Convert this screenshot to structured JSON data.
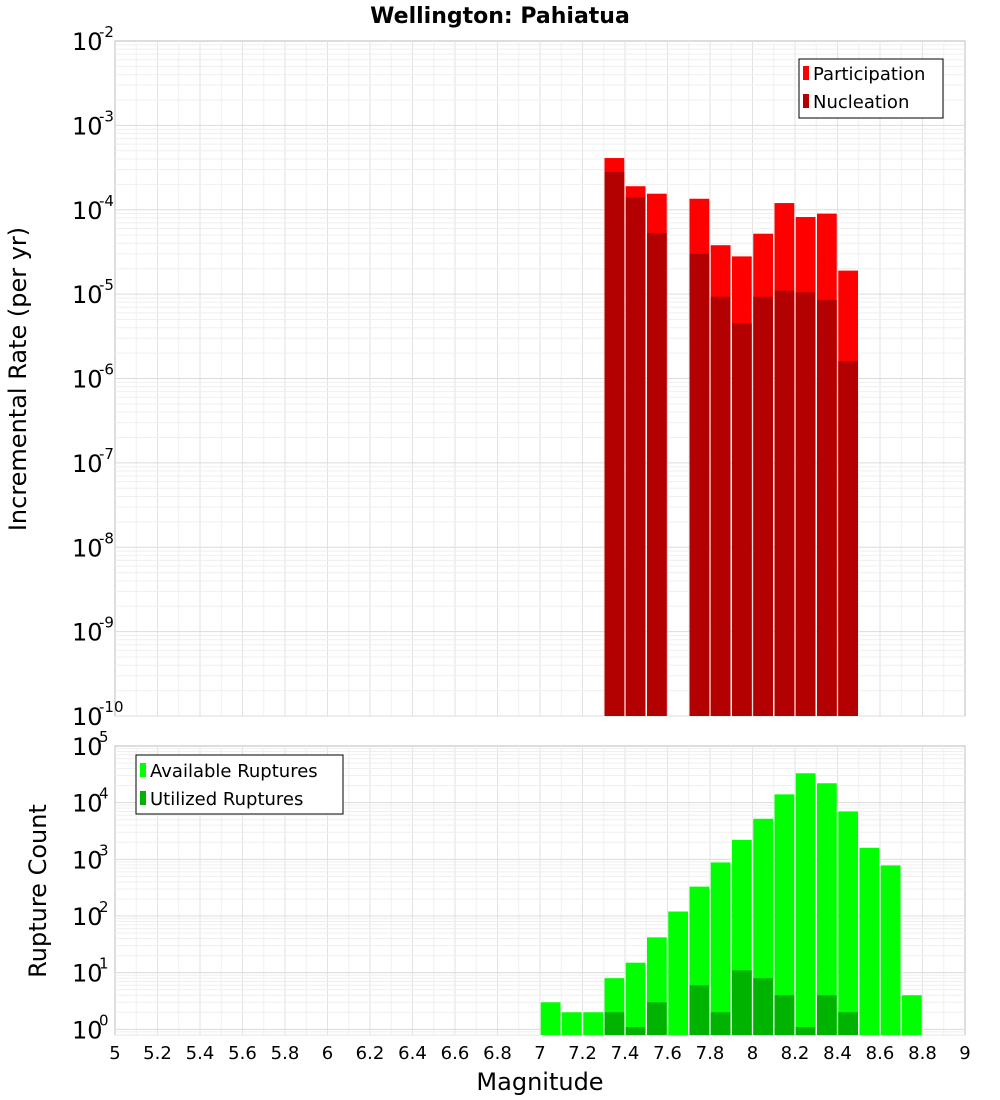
{
  "chart_data": {
    "type": "bar",
    "title": "Wellington: Pahiatua",
    "xlabel": "Magnitude",
    "xlim": [
      5,
      9
    ],
    "x_ticks": [
      "5",
      "5.2",
      "5.4",
      "5.6",
      "5.8",
      "6",
      "6.2",
      "6.4",
      "6.6",
      "6.8",
      "7",
      "7.2",
      "7.4",
      "7.6",
      "7.8",
      "8",
      "8.2",
      "8.4",
      "8.6",
      "8.8",
      "9"
    ],
    "bin_width": 0.1,
    "panels": [
      {
        "id": "rate",
        "ylabel": "Incremental Rate (per yr)",
        "yscale": "log",
        "ylim_exp": [
          -10,
          -2
        ],
        "y_tick_base": "10",
        "y_tick_exponents": [
          "-10",
          "-9",
          "-8",
          "-7",
          "-6",
          "-5",
          "-4",
          "-3",
          "-2"
        ],
        "legend": {
          "position": "top-right",
          "entries": [
            "Participation",
            "Nucleation"
          ]
        },
        "series": [
          {
            "name": "Participation",
            "color": "#ff0000",
            "x": [
              7.35,
              7.45,
              7.55,
              7.75,
              7.85,
              7.95,
              8.05,
              8.15,
              8.25,
              8.35,
              8.45
            ],
            "values": [
              0.00041,
              0.00019,
              0.000155,
              0.000135,
              3.8e-05,
              2.8e-05,
              5.2e-05,
              0.00012,
              8.2e-05,
              9e-05,
              1.9e-05
            ]
          },
          {
            "name": "Nucleation",
            "color": "#b30000",
            "x": [
              7.35,
              7.45,
              7.55,
              7.75,
              7.85,
              7.95,
              8.05,
              8.15,
              8.25,
              8.35,
              8.45
            ],
            "values": [
              0.00028,
              0.00014,
              5.3e-05,
              3e-05,
              9.3e-06,
              4.5e-06,
              9.3e-06,
              1.1e-05,
              1.05e-05,
              8.5e-06,
              1.6e-06
            ]
          }
        ]
      },
      {
        "id": "count",
        "ylabel": "Rupture Count",
        "yscale": "log",
        "ylim_exp": [
          -0.1,
          5
        ],
        "y_tick_base": "10",
        "y_tick_exponents": [
          "0",
          "1",
          "2",
          "3",
          "4",
          "5"
        ],
        "legend": {
          "position": "top-left",
          "entries": [
            "Available Ruptures",
            "Utilized Ruptures"
          ]
        },
        "series": [
          {
            "name": "Available Ruptures",
            "color": "#00ff00",
            "x": [
              7.05,
              7.15,
              7.25,
              7.35,
              7.45,
              7.55,
              7.65,
              7.75,
              7.85,
              7.95,
              8.05,
              8.15,
              8.25,
              8.35,
              8.45,
              8.55,
              8.65,
              8.75
            ],
            "values": [
              3,
              2,
              2,
              8,
              15,
              42,
              120,
              330,
              880,
              2200,
              5200,
              14000,
              33000,
              22000,
              7000,
              1600,
              780,
              4
            ]
          },
          {
            "name": "Utilized Ruptures",
            "color": "#00b300",
            "x": [
              7.35,
              7.45,
              7.55,
              7.75,
              7.85,
              7.95,
              8.05,
              8.15,
              8.25,
              8.35,
              8.45
            ],
            "values": [
              2,
              1.1,
              3,
              6,
              2,
              11,
              8,
              4,
              1.1,
              4,
              2
            ]
          }
        ]
      }
    ]
  }
}
